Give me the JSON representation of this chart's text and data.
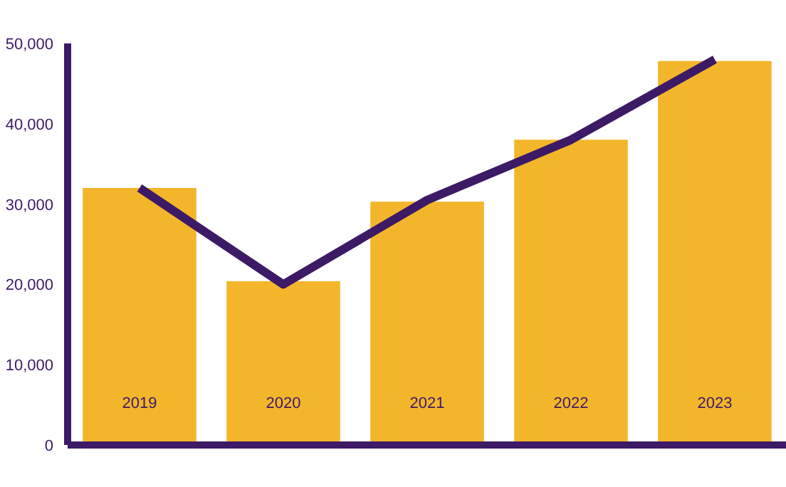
{
  "chart_data": {
    "type": "bar",
    "categories": [
      "2019",
      "2020",
      "2021",
      "2022",
      "2023"
    ],
    "series": [
      {
        "color": "#f3b62b",
        "values": [
          32000,
          20400,
          30300,
          38000,
          47800
        ]
      },
      {
        "type": "line",
        "color": "#3d1a66",
        "values": [
          32000,
          20000,
          30500,
          38000,
          48000
        ]
      }
    ],
    "ylim": [
      0,
      50000
    ],
    "yticks": [
      {
        "value": 0,
        "label": "0"
      },
      {
        "value": 10000,
        "label": "10,000"
      },
      {
        "value": 20000,
        "label": "20,000"
      },
      {
        "value": 30000,
        "label": "30,000"
      },
      {
        "value": 40000,
        "label": "40,000"
      },
      {
        "value": 50000,
        "label": "50,000"
      }
    ],
    "grid": false
  }
}
